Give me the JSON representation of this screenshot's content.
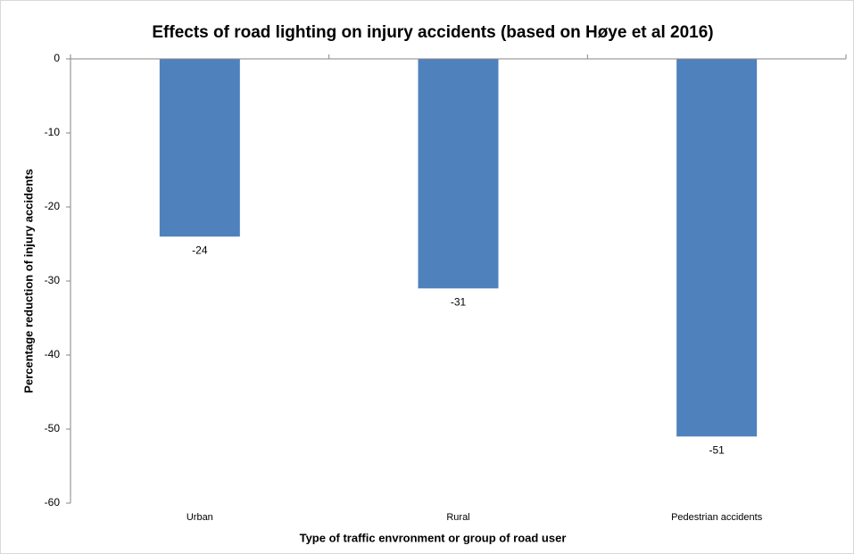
{
  "chart_data": {
    "type": "bar",
    "title": "Effects of road lighting on injury accidents (based on Høye et al 2016)",
    "x_label": "Type of traffic envronment or group of road user",
    "y_label": "Percentage reduction of injury accidents",
    "categories": [
      "Urban",
      "Rural",
      "Pedestrian accidents"
    ],
    "values": [
      -24,
      -31,
      -51
    ],
    "color": "#4f81bd",
    "ylim": [
      -60,
      0
    ],
    "yticks": [
      0,
      -10,
      -20,
      -30,
      -40,
      -50,
      -60
    ],
    "grid": false
  }
}
